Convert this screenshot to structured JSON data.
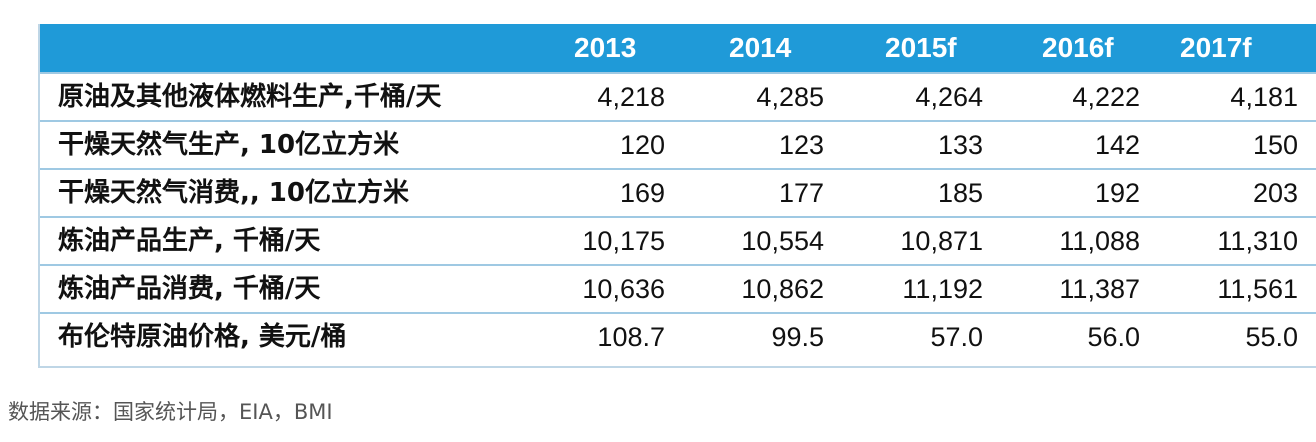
{
  "table": {
    "columns": [
      "2013",
      "2014",
      "2015f",
      "2016f",
      "2017f"
    ],
    "rows": [
      {
        "label": "原油及其他液体燃料生产,千桶/天",
        "values": [
          "4,218",
          "4,285",
          "4,264",
          "4,222",
          "4,181"
        ]
      },
      {
        "label": "干燥天然气生产, 10亿立方米",
        "values": [
          "120",
          "123",
          "133",
          "142",
          "150"
        ]
      },
      {
        "label": "干燥天然气消费,, 10亿立方米",
        "values": [
          "169",
          "177",
          "185",
          "192",
          "203"
        ]
      },
      {
        "label": "炼油产品生产, 千桶/天",
        "values": [
          "10,175",
          "10,554",
          "10,871",
          "11,088",
          "11,310"
        ]
      },
      {
        "label": "炼油产品消费, 千桶/天",
        "values": [
          "10,636",
          "10,862",
          "11,192",
          "11,387",
          "11,561"
        ]
      },
      {
        "label": "布伦特原油价格, 美元/桶",
        "values": [
          "108.7",
          "99.5",
          "57.0",
          "56.0",
          "55.0"
        ]
      }
    ]
  },
  "source": "数据来源：国家统计局，EIA，BMI",
  "colors": {
    "header_bg": "#1f9ad8",
    "header_text": "#ffffff",
    "row_border": "#9fc9e3"
  }
}
